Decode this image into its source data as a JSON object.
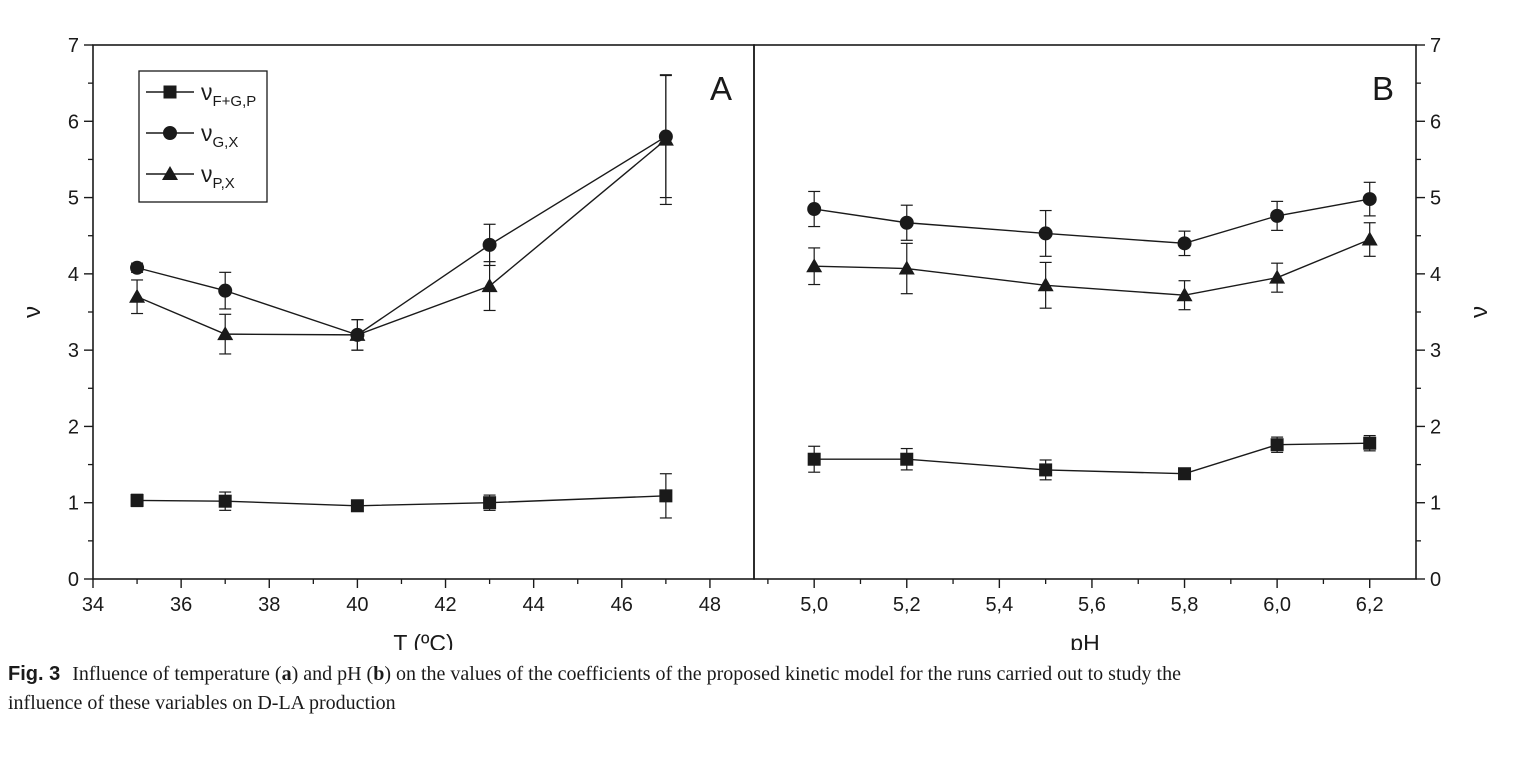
{
  "figure_label": "Fig. 3",
  "caption": {
    "t1": "Influence of temperature (",
    "a": "a",
    "t2": ") and pH (",
    "b": "b",
    "t3": ") on the values of the coefficients of the proposed kinetic model for the runs carried out to study the",
    "t4": "influence of these variables on D-LA production"
  },
  "colors": {
    "ink": "#1a1a1a",
    "background": "#ffffff"
  },
  "chart_data": [
    {
      "type": "line",
      "panel_label": "A",
      "xlabel": "T (ºC)",
      "ylabel": "ν",
      "xlim": [
        34,
        49
      ],
      "ylim": [
        0,
        7
      ],
      "xticks": [
        34,
        36,
        38,
        40,
        42,
        44,
        46,
        48
      ],
      "xticklabels": [
        "34",
        "36",
        "38",
        "40",
        "42",
        "44",
        "46",
        "48"
      ],
      "yticks": [
        0,
        1,
        2,
        3,
        4,
        5,
        6,
        7
      ],
      "yticklabels": [
        "0",
        "1",
        "2",
        "3",
        "4",
        "5",
        "6",
        "7"
      ],
      "grid": false,
      "legend": "top-left",
      "x": [
        35,
        37,
        40,
        43,
        47
      ],
      "series": [
        {
          "name": "νF+G,P",
          "sym": "ν",
          "sub": "F+G,P",
          "marker": "square",
          "values": [
            1.03,
            1.02,
            0.96,
            1.0,
            1.09
          ],
          "err": [
            0.08,
            0.12,
            0.07,
            0.1,
            0.29
          ]
        },
        {
          "name": "νG,X",
          "sym": "ν",
          "sub": "G,X",
          "marker": "circle",
          "values": [
            4.08,
            3.78,
            3.2,
            4.38,
            5.8
          ],
          "err": [
            0.06,
            0.24,
            0.2,
            0.27,
            0.8
          ]
        },
        {
          "name": "νP,X",
          "sym": "ν",
          "sub": "P,X",
          "marker": "triangle",
          "values": [
            3.7,
            3.21,
            3.2,
            3.84,
            5.76
          ],
          "err": [
            0.22,
            0.26,
            0.2,
            0.32,
            0.85
          ]
        }
      ]
    },
    {
      "type": "line",
      "panel_label": "B",
      "xlabel": "pH",
      "ylabel": "ν",
      "xlim": [
        4.87,
        6.3
      ],
      "ylim": [
        0,
        7
      ],
      "xticks": [
        5.0,
        5.2,
        5.4,
        5.6,
        5.8,
        6.0,
        6.2
      ],
      "xticklabels": [
        "5,0",
        "5,2",
        "5,4",
        "5,6",
        "5,8",
        "6,0",
        "6,2"
      ],
      "yticks": [
        0,
        1,
        2,
        3,
        4,
        5,
        6,
        7
      ],
      "yticklabels": [
        "0",
        "1",
        "2",
        "3",
        "4",
        "5",
        "6",
        "7"
      ],
      "grid": false,
      "x": [
        5.0,
        5.2,
        5.5,
        5.8,
        6.0,
        6.2
      ],
      "series": [
        {
          "marker": "square",
          "values": [
            1.57,
            1.57,
            1.43,
            1.38,
            1.76,
            1.78
          ],
          "err": [
            0.17,
            0.14,
            0.13,
            0.04,
            0.1,
            0.1
          ]
        },
        {
          "marker": "circle",
          "values": [
            4.85,
            4.67,
            4.53,
            4.4,
            4.76,
            4.98
          ],
          "err": [
            0.23,
            0.23,
            0.3,
            0.16,
            0.19,
            0.22
          ]
        },
        {
          "marker": "triangle",
          "values": [
            4.1,
            4.07,
            3.85,
            3.72,
            3.95,
            4.45
          ],
          "err": [
            0.24,
            0.33,
            0.3,
            0.19,
            0.19,
            0.22
          ]
        }
      ]
    }
  ]
}
